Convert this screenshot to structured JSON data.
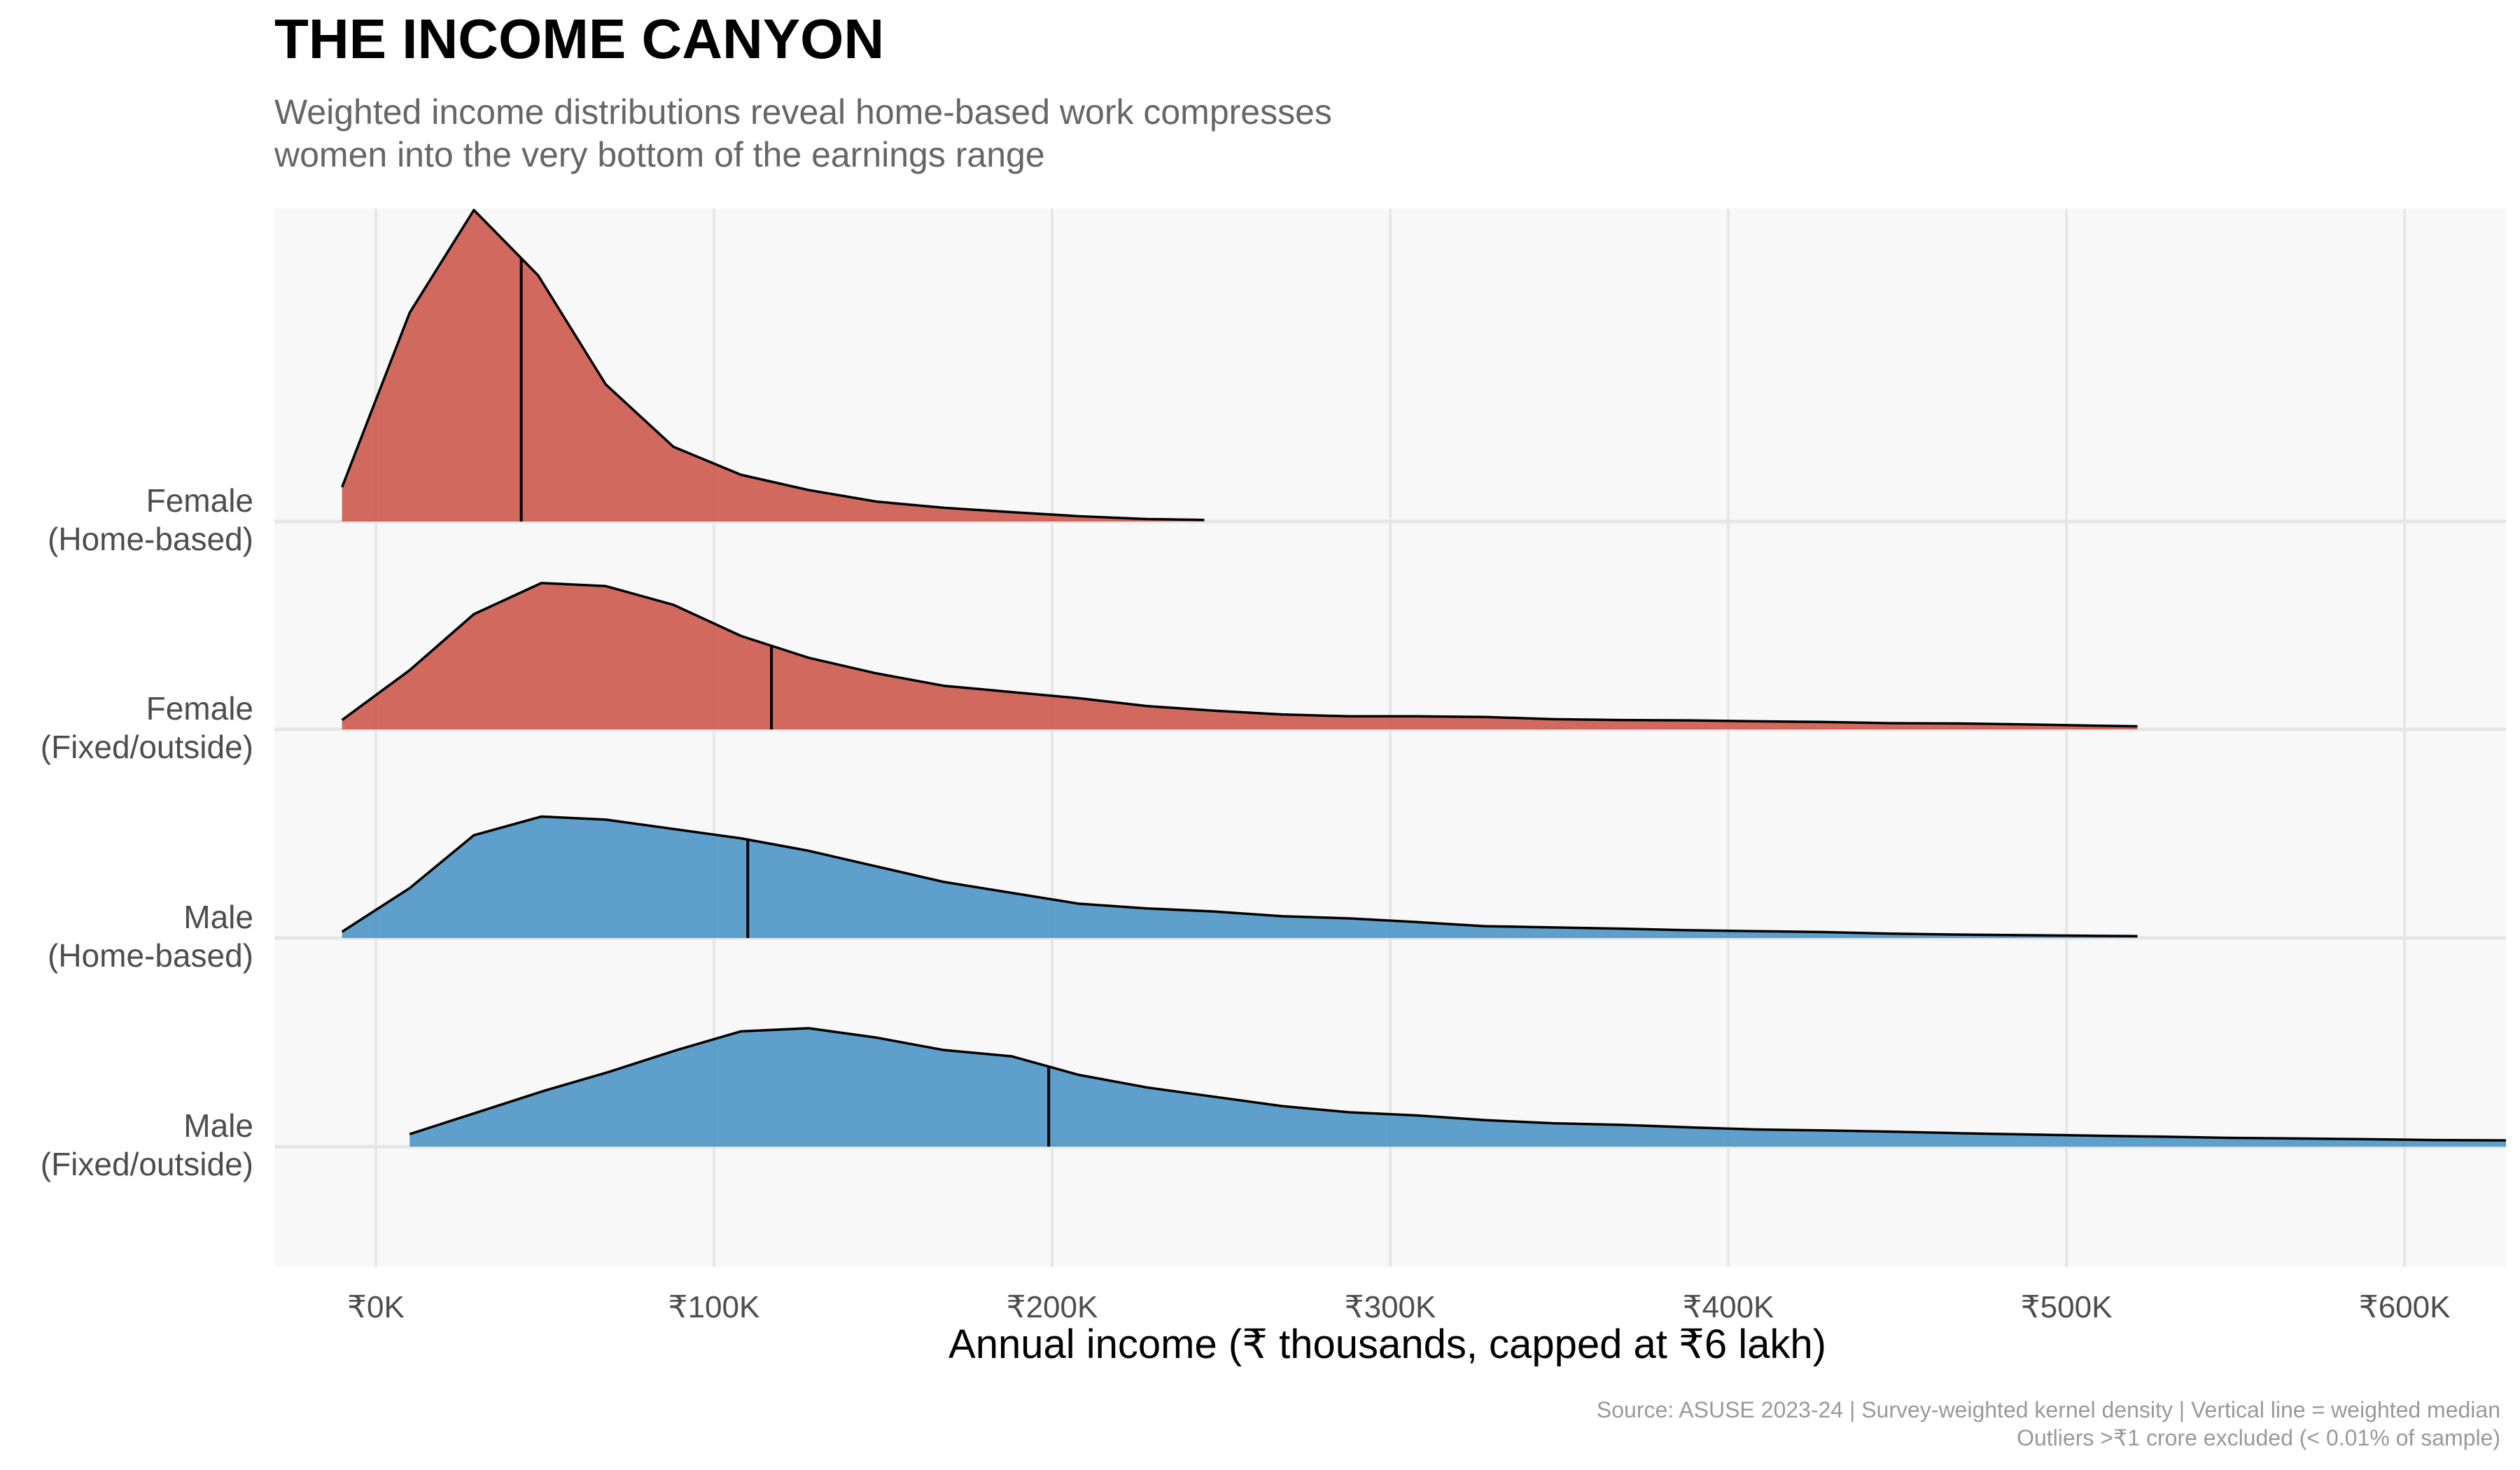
{
  "chart_data": {
    "type": "area",
    "title": "THE INCOME CANYON",
    "subtitle_lines": [
      "Weighted income distributions reveal home-based work compresses",
      "women into the very bottom of the earnings range"
    ],
    "xlabel": "Annual income (₹ thousands, capped at ₹6 lakh)",
    "ylabel": "",
    "xlim": [
      -30,
      630
    ],
    "x_ticks": [
      0,
      100,
      200,
      300,
      400,
      500,
      600
    ],
    "x_tick_labels": [
      "₹0K",
      "₹100K",
      "₹200K",
      "₹300K",
      "₹400K",
      "₹500K",
      "₹600K"
    ],
    "grid": true,
    "caption_lines": [
      "Source: ASUSE 2023-24 | Survey-weighted kernel density | Vertical line = weighted median",
      "Outliers >₹1 crore excluded (< 0.01% of sample)"
    ],
    "colors": {
      "female": "#C8493C",
      "male": "#3C8BC2",
      "panel_bg": "#F8F8F8",
      "grid": "#E6E6E6"
    },
    "series": [
      {
        "label": [
          "Female",
          "(Home-based)"
        ],
        "group": "female",
        "median": 43,
        "x": [
          -10,
          10,
          29,
          48,
          68,
          88,
          108,
          128,
          148,
          168,
          188,
          208,
          228,
          245
        ],
        "y": [
          0.11,
          0.67,
          1.0,
          0.79,
          0.44,
          0.24,
          0.15,
          0.101,
          0.064,
          0.044,
          0.03,
          0.017,
          0.008,
          0.005
        ]
      },
      {
        "label": [
          "Female",
          "(Fixed/outside)"
        ],
        "group": "female",
        "median": 117,
        "x": [
          -10,
          10,
          29,
          49,
          68,
          88,
          108,
          128,
          148,
          168,
          188,
          208,
          228,
          248,
          268,
          288,
          308,
          328,
          348,
          368,
          388,
          408,
          428,
          448,
          468,
          488,
          508,
          521
        ],
        "y": [
          0.03,
          0.19,
          0.37,
          0.47,
          0.46,
          0.4,
          0.3,
          0.23,
          0.18,
          0.14,
          0.12,
          0.1,
          0.075,
          0.06,
          0.048,
          0.042,
          0.042,
          0.04,
          0.033,
          0.03,
          0.029,
          0.026,
          0.024,
          0.02,
          0.019,
          0.016,
          0.012,
          0.01
        ]
      },
      {
        "label": [
          "Male",
          "(Home-based)"
        ],
        "group": "male",
        "median": 110,
        "x": [
          -10,
          10,
          29,
          49,
          68,
          88,
          108,
          128,
          148,
          168,
          188,
          208,
          228,
          248,
          268,
          288,
          308,
          328,
          348,
          368,
          388,
          408,
          428,
          448,
          468,
          488,
          508,
          521
        ],
        "y": [
          0.02,
          0.16,
          0.33,
          0.39,
          0.38,
          0.35,
          0.32,
          0.28,
          0.23,
          0.18,
          0.145,
          0.11,
          0.095,
          0.085,
          0.07,
          0.063,
          0.051,
          0.038,
          0.034,
          0.03,
          0.025,
          0.022,
          0.019,
          0.014,
          0.011,
          0.009,
          0.007,
          0.006
        ]
      },
      {
        "label": [
          "Male",
          "(Fixed/outside)"
        ],
        "group": "male",
        "median": 199,
        "x": [
          10,
          30,
          50,
          69,
          89,
          108,
          128,
          148,
          168,
          188,
          208,
          228,
          248,
          268,
          288,
          308,
          328,
          348,
          368,
          388,
          408,
          428,
          448,
          468,
          488,
          508,
          528,
          548,
          568,
          588,
          608,
          630
        ],
        "y": [
          0.04,
          0.11,
          0.18,
          0.24,
          0.31,
          0.37,
          0.38,
          0.35,
          0.31,
          0.29,
          0.23,
          0.19,
          0.16,
          0.13,
          0.11,
          0.1,
          0.085,
          0.075,
          0.07,
          0.062,
          0.055,
          0.052,
          0.048,
          0.043,
          0.039,
          0.035,
          0.032,
          0.028,
          0.026,
          0.024,
          0.021,
          0.02
        ]
      }
    ]
  }
}
